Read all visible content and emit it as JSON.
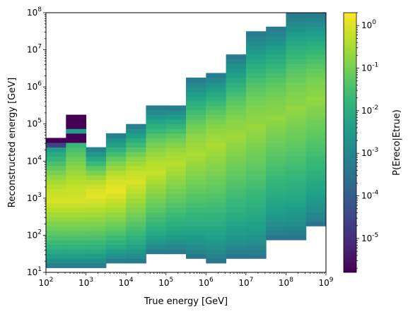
{
  "chart_data": {
    "type": "heatmap",
    "title": "",
    "xlabel": "True energy [GeV]",
    "ylabel": "Reconstructed energy [GeV]",
    "colorbar_label": "P(Ereco|Etrue)",
    "xscale": "log",
    "yscale": "log",
    "xlim": [
      100,
      1000000000
    ],
    "ylim": [
      10,
      100000000
    ],
    "colorbar_lim": [
      1.6e-06,
      2.0
    ],
    "colormap": "viridis",
    "colormap_stops": [
      "#440154",
      "#482878",
      "#3e4989",
      "#31688e",
      "#26828e",
      "#1f9e89",
      "#35b779",
      "#6ece58",
      "#b5de2b",
      "#fde725"
    ],
    "x_bin_edges_log10": [
      2.0,
      2.5,
      3.0,
      3.5,
      4.0,
      4.5,
      5.0,
      5.5,
      6.0,
      6.5,
      7.0,
      7.5,
      8.0,
      8.5,
      9.0
    ],
    "y_bin_edges_log10": [
      1.0,
      1.125,
      1.25,
      1.375,
      1.5,
      1.625,
      1.75,
      1.875,
      2.0,
      2.125,
      2.25,
      2.375,
      2.5,
      2.625,
      2.75,
      2.875,
      3.0,
      3.125,
      3.25,
      3.375,
      3.5,
      3.625,
      3.75,
      3.875,
      4.0,
      4.125,
      4.25,
      4.375,
      4.5,
      4.625,
      4.75,
      4.875,
      5.0,
      5.125,
      5.25,
      5.375,
      5.5,
      5.625,
      5.75,
      5.875,
      6.0,
      6.125,
      6.25,
      6.375,
      6.5,
      6.625,
      6.75,
      6.875,
      7.0,
      7.125,
      7.25,
      7.375,
      7.5,
      7.625,
      7.75,
      7.875,
      8.0
    ],
    "x_ticks": [
      "10^2",
      "10^3",
      "10^4",
      "10^5",
      "10^6",
      "10^7",
      "10^8",
      "10^9"
    ],
    "y_ticks": [
      "10^1",
      "10^2",
      "10^3",
      "10^4",
      "10^5",
      "10^6",
      "10^7",
      "10^8"
    ],
    "colorbar_ticks": [
      "10^-5",
      "10^-4",
      "10^-3",
      "10^-2",
      "10^-1",
      "10^0"
    ],
    "grid": false,
    "colorbar_position": "right",
    "columns": [
      {
        "xbin": [
          2.0,
          2.5
        ],
        "ymin": 1.125,
        "ymax": 4.625,
        "peak": 3.0,
        "lo": 1.0,
        "hi": 1.25,
        "pk": 0.85,
        "extra": [
          {
            "y": [
              4.375,
              4.5
            ],
            "v": 0.2
          },
          {
            "y": [
              4.5,
              4.625
            ],
            "v": 0.0
          }
        ]
      },
      {
        "xbin": [
          2.5,
          3.0
        ],
        "ymin": 1.125,
        "ymax": 5.25,
        "peak": 3.0,
        "lo": 1.0,
        "hi": 1.25,
        "pk": 0.85,
        "extra": [
          {
            "y": [
              4.5,
              4.75
            ],
            "v": 0.0
          },
          {
            "y": [
              4.875,
              5.25
            ],
            "v": 0.0
          }
        ]
      },
      {
        "xbin": [
          3.0,
          3.5
        ],
        "ymin": 1.125,
        "ymax": 4.375,
        "peak": 3.125,
        "lo": 1.0,
        "hi": 1.3,
        "pk": 0.87
      },
      {
        "xbin": [
          3.5,
          4.0
        ],
        "ymin": 1.25,
        "ymax": 4.75,
        "peak": 3.25,
        "lo": 1.05,
        "hi": 1.3,
        "pk": 0.88
      },
      {
        "xbin": [
          4.0,
          4.5
        ],
        "ymin": 1.25,
        "ymax": 5.0,
        "peak": 3.5,
        "lo": 1.1,
        "hi": 1.35,
        "pk": 0.85
      },
      {
        "xbin": [
          4.5,
          5.0
        ],
        "ymin": 1.5,
        "ymax": 5.5,
        "peak": 3.75,
        "lo": 1.15,
        "hi": 1.3,
        "pk": 0.82
      },
      {
        "xbin": [
          5.0,
          5.5
        ],
        "ymin": 1.5,
        "ymax": 5.5,
        "peak": 4.0,
        "lo": 1.15,
        "hi": 1.3,
        "pk": 0.8
      },
      {
        "xbin": [
          5.5,
          6.0
        ],
        "ymin": 1.375,
        "ymax": 6.25,
        "peak": 4.25,
        "lo": 1.1,
        "hi": 1.3,
        "pk": 0.78
      },
      {
        "xbin": [
          6.0,
          6.5
        ],
        "ymin": 1.25,
        "ymax": 6.375,
        "peak": 4.5,
        "lo": 1.15,
        "hi": 1.35,
        "pk": 0.78
      },
      {
        "xbin": [
          6.5,
          7.0
        ],
        "ymin": 1.375,
        "ymax": 6.875,
        "peak": 4.75,
        "lo": 1.15,
        "hi": 1.35,
        "pk": 0.76
      },
      {
        "xbin": [
          7.0,
          7.5
        ],
        "ymin": 1.375,
        "ymax": 7.5,
        "peak": 5.0,
        "lo": 1.2,
        "hi": 1.35,
        "pk": 0.75
      },
      {
        "xbin": [
          7.5,
          8.0
        ],
        "ymin": 1.875,
        "ymax": 7.625,
        "peak": 5.25,
        "lo": 1.2,
        "hi": 1.35,
        "pk": 0.74
      },
      {
        "xbin": [
          8.0,
          8.5
        ],
        "ymin": 1.875,
        "ymax": 8.0,
        "peak": 5.5,
        "lo": 1.2,
        "hi": 1.35,
        "pk": 0.74
      },
      {
        "xbin": [
          8.5,
          9.0
        ],
        "ymin": 2.25,
        "ymax": 8.0,
        "peak": 5.75,
        "lo": 1.25,
        "hi": 1.35,
        "pk": 0.74
      }
    ]
  }
}
